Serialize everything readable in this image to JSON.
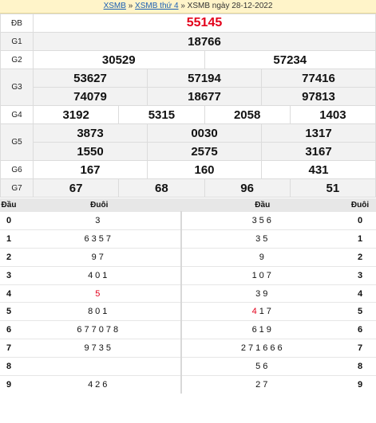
{
  "breadcrumb": {
    "link1": "XSMB",
    "sep": "»",
    "link2": "XSMB thứ 4",
    "current": "XSMB ngày 28-12-2022"
  },
  "prizes": {
    "db": {
      "label": "ĐB",
      "values": [
        "55145"
      ]
    },
    "g1": {
      "label": "G1",
      "values": [
        "18766"
      ]
    },
    "g2": {
      "label": "G2",
      "values": [
        "30529",
        "57234"
      ]
    },
    "g3": {
      "label": "G3",
      "values": [
        "53627",
        "57194",
        "77416",
        "74079",
        "18677",
        "97813"
      ]
    },
    "g4": {
      "label": "G4",
      "values": [
        "3192",
        "5315",
        "2058",
        "1403"
      ]
    },
    "g5": {
      "label": "G5",
      "values": [
        "3873",
        "0030",
        "1317",
        "1550",
        "2575",
        "3167"
      ]
    },
    "g6": {
      "label": "G6",
      "values": [
        "167",
        "160",
        "431"
      ]
    },
    "g7": {
      "label": "G7",
      "values": [
        "67",
        "68",
        "96",
        "51"
      ]
    }
  },
  "headtail": {
    "headers": {
      "dau": "Đầu",
      "duoi": "Đuôi",
      "dau2": "Đầu",
      "duoi2": "Đuôi"
    },
    "rows": [
      {
        "d": "0",
        "tails": "3",
        "heads": "356"
      },
      {
        "d": "1",
        "tails": "6357",
        "heads": "35"
      },
      {
        "d": "2",
        "tails": "97",
        "heads": "9"
      },
      {
        "d": "3",
        "tails": "401",
        "heads": "107"
      },
      {
        "d": "4",
        "tails": "5",
        "heads": "39"
      },
      {
        "d": "5",
        "tails": "801",
        "heads": "17"
      },
      {
        "d": "6",
        "tails": "677078",
        "heads": "619"
      },
      {
        "d": "7",
        "tails": "9735",
        "heads": "271666"
      },
      {
        "d": "8",
        "tails": "",
        "heads": "56"
      },
      {
        "d": "9",
        "tails": "426",
        "heads": "27"
      }
    ],
    "special": {
      "tail_4": "5",
      "head_5": "4"
    }
  },
  "colors": {
    "highlight": "#e3001b",
    "link": "#1a5fb4"
  }
}
